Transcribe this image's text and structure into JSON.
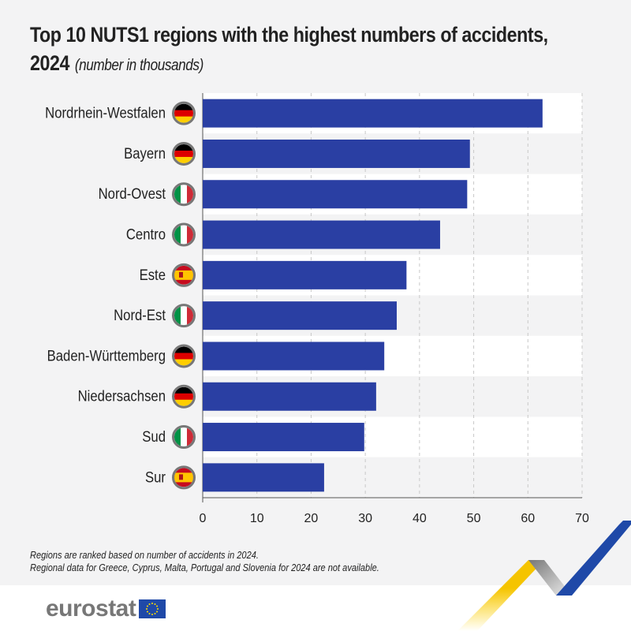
{
  "title": "Top 10 NUTS1 regions with the highest numbers of accidents,",
  "title_line2": "2024",
  "subtitle": "(number in thousands)",
  "footnotes": [
    "Regions are ranked based on number of accidents in 2024.",
    "Regional data for Greece, Cyprus, Malta, Portugal and Slovenia for 2024 are not available."
  ],
  "logo": "eurostat",
  "colors": {
    "bar": "#2a3fa3",
    "grid": "#c8c8c8",
    "row_alt": "#f3f3f4"
  },
  "chart_data": {
    "type": "bar",
    "orientation": "horizontal",
    "title": "Top 10 NUTS1 regions with the highest numbers of accidents, 2024",
    "ylabel": "number in thousands",
    "categories": [
      "Nordrhein-Westfalen",
      "Bayern",
      "Nord-Ovest",
      "Centro",
      "Este",
      "Nord-Est",
      "Baden-Württemberg",
      "Niedersachsen",
      "Sud",
      "Sur"
    ],
    "countries": [
      "DE",
      "DE",
      "IT",
      "IT",
      "ES",
      "IT",
      "DE",
      "DE",
      "IT",
      "ES"
    ],
    "values": [
      62.7,
      49.3,
      48.8,
      43.8,
      37.6,
      35.8,
      33.5,
      32.0,
      29.8,
      22.4
    ],
    "xlim": [
      0,
      70
    ],
    "xticks": [
      "0",
      "10",
      "20",
      "30",
      "40",
      "50",
      "60",
      "70"
    ],
    "grid": true
  }
}
